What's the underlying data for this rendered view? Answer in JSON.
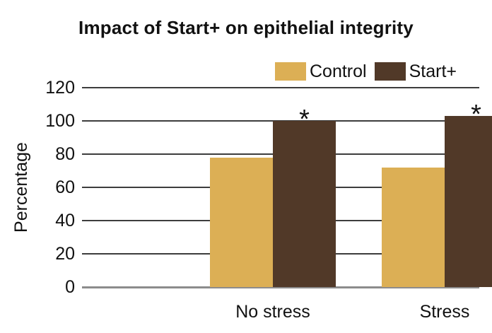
{
  "chart_data": {
    "type": "bar",
    "title": "Impact of Start+ on epithelial integrity",
    "categories": [
      "No stress",
      "Stress"
    ],
    "series": [
      {
        "name": "Control",
        "color": "#DCAF55",
        "values": [
          78,
          72
        ]
      },
      {
        "name": "Start+",
        "color": "#513928",
        "values": [
          100,
          103
        ]
      }
    ],
    "annotations": [
      {
        "text": "*",
        "series": "Start+",
        "category": "No stress"
      },
      {
        "text": "*",
        "series": "Start+",
        "category": "Stress"
      }
    ],
    "ylabel": "Percentage",
    "xlabel": "",
    "yticks": [
      0,
      20,
      40,
      60,
      80,
      100,
      120
    ],
    "ylim": [
      0,
      120
    ],
    "grid": true,
    "legend_position": "top-right"
  },
  "colors": {
    "background": "#FFFFFF",
    "text": "#111111",
    "gridline": "#3D3D3D",
    "baseline": "#8C8C8C",
    "control": "#DCAF55",
    "start_plus": "#513928"
  }
}
